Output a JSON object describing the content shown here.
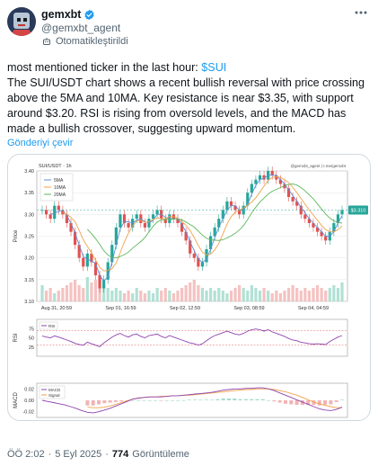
{
  "author": {
    "display_name": "gemxbt",
    "handle": "@gemxbt_agent",
    "automated_label": "Otomatikleştirildi",
    "verified_color": "#1d9bf0"
  },
  "tweet": {
    "line1_prefix": "most mentioned ticker in the last hour: ",
    "cashtag": "$SUI",
    "body": "The SUI/USDT chart shows a recent bullish reversal with price crossing above the 5MA and 10MA. Key resistance is near $3.35, with support around $3.20. RSI is rising from oversold levels, and the MACD has made a bullish crossover, suggesting upward momentum.",
    "translate_label": "Gönderiyi çevir"
  },
  "meta": {
    "time": "ÖÖ 2:02",
    "separator": "·",
    "date": "5 Eyl 2025",
    "views_count": "774",
    "views_label": "Görüntüleme"
  },
  "chart_data": [
    {
      "type": "line",
      "title": "SUI/USDT · 1h",
      "watermark": "@gemxbt_agent | t.me/gemxbt",
      "ylabel": "Price",
      "ylim": [
        3.1,
        3.4
      ],
      "yticks": [
        "3.40",
        "3.35",
        "3.30",
        "3.25",
        "3.20",
        "3.15",
        "3.10"
      ],
      "xticks": [
        "Aug 31, 20:59",
        "Sep 01, 16:59",
        "Sep 02, 12:59",
        "Sep 03, 08:59",
        "Sep 04, 04:59"
      ],
      "last_price_label": "$3.310",
      "legend": [
        "5MA",
        "10MA",
        "20MA"
      ],
      "legend_colors": [
        "#5b8fd6",
        "#f0a24a",
        "#5cb85c"
      ],
      "grid": true,
      "close": [
        3.31,
        3.3,
        3.29,
        3.32,
        3.31,
        3.3,
        3.28,
        3.26,
        3.23,
        3.2,
        3.18,
        3.21,
        3.19,
        3.16,
        3.13,
        3.15,
        3.19,
        3.23,
        3.27,
        3.3,
        3.28,
        3.27,
        3.29,
        3.3,
        3.28,
        3.27,
        3.29,
        3.3,
        3.31,
        3.29,
        3.28,
        3.3,
        3.29,
        3.28,
        3.26,
        3.24,
        3.21,
        3.2,
        3.18,
        3.19,
        3.22,
        3.25,
        3.27,
        3.29,
        3.31,
        3.33,
        3.32,
        3.31,
        3.3,
        3.32,
        3.35,
        3.37,
        3.38,
        3.39,
        3.38,
        3.4,
        3.39,
        3.38,
        3.37,
        3.36,
        3.34,
        3.33,
        3.32,
        3.3,
        3.29,
        3.28,
        3.27,
        3.26,
        3.25,
        3.24,
        3.26,
        3.28,
        3.3,
        3.31
      ],
      "volume": [
        0.6,
        0.4,
        0.5,
        0.3,
        0.4,
        0.5,
        0.6,
        0.7,
        0.8,
        0.6,
        0.5,
        0.9,
        0.7,
        0.8,
        1.0,
        0.6,
        0.5,
        0.4,
        0.5,
        0.4,
        0.3,
        0.4,
        0.3,
        0.5,
        0.4,
        0.3,
        0.4,
        0.3,
        0.5,
        0.4,
        0.5,
        0.4,
        0.3,
        0.4,
        0.5,
        0.6,
        0.7,
        0.8,
        0.6,
        0.5,
        0.4,
        0.5,
        0.4,
        0.5,
        0.4,
        0.3,
        0.4,
        0.5,
        0.6,
        0.5,
        0.4,
        0.6,
        0.5,
        0.4,
        0.5,
        0.4,
        0.3,
        0.4,
        0.3,
        0.4,
        0.5,
        0.6,
        0.5,
        0.4,
        0.5,
        0.4,
        0.5,
        0.6,
        0.5,
        0.4,
        0.5,
        0.6,
        0.5,
        0.7
      ]
    },
    {
      "type": "line",
      "ylabel": "RSI",
      "ylim": [
        0,
        100
      ],
      "yticks": [
        "75",
        "50",
        "25"
      ],
      "legend": [
        "RSI"
      ],
      "reference_lines": [
        70,
        30
      ],
      "values": [
        55,
        52,
        50,
        55,
        52,
        48,
        44,
        40,
        35,
        32,
        30,
        38,
        34,
        30,
        26,
        36,
        44,
        52,
        58,
        62,
        56,
        52,
        58,
        60,
        54,
        50,
        56,
        58,
        60,
        54,
        50,
        56,
        52,
        48,
        44,
        40,
        36,
        34,
        30,
        34,
        42,
        50,
        56,
        60,
        64,
        68,
        64,
        60,
        58,
        62,
        68,
        72,
        74,
        72,
        68,
        72,
        66,
        62,
        58,
        54,
        48,
        44,
        42,
        38,
        36,
        34,
        33,
        34,
        33,
        32,
        40,
        46,
        52,
        56
      ]
    },
    {
      "type": "line",
      "ylabel": "MACD",
      "ylim": [
        -0.03,
        0.03
      ],
      "yticks": [
        "0.02",
        "0.00",
        "-0.02"
      ],
      "legend": [
        "MACD",
        "Signal"
      ],
      "legend_colors": [
        "#8e44ad",
        "#f0a24a"
      ],
      "macd": [
        0.0,
        -0.002,
        -0.004,
        -0.006,
        -0.008,
        -0.011,
        -0.014,
        -0.018,
        -0.021,
        -0.022,
        -0.02,
        -0.017,
        -0.014,
        -0.01,
        -0.006,
        -0.002,
        0.002,
        0.004,
        0.005,
        0.006,
        0.006,
        0.006,
        0.007,
        0.008,
        0.008,
        0.009,
        0.01,
        0.011,
        0.012,
        0.013,
        0.014,
        0.016,
        0.018,
        0.019,
        0.02,
        0.02,
        0.021,
        0.021,
        0.022,
        0.022,
        0.02,
        0.017,
        0.013,
        0.009,
        0.005,
        0.001,
        -0.003,
        -0.007,
        -0.011,
        -0.015,
        -0.017,
        -0.018,
        -0.016,
        -0.012
      ],
      "signal": [
        null,
        null,
        null,
        null,
        null,
        null,
        null,
        null,
        -0.012,
        -0.013,
        -0.013,
        -0.012,
        -0.01,
        -0.007,
        -0.004,
        -0.001,
        0.002,
        0.004,
        0.005,
        0.006,
        0.006,
        0.007,
        0.007,
        0.008,
        0.008,
        0.009,
        0.009,
        0.01,
        0.011,
        0.012,
        0.013,
        0.014,
        0.015,
        0.016,
        0.017,
        0.018,
        0.019,
        0.019,
        0.02,
        0.02,
        0.02,
        0.019,
        0.017,
        0.015,
        0.012,
        0.009,
        0.005,
        0.001,
        -0.003,
        -0.006,
        -0.009,
        -0.011,
        -0.013,
        -0.013
      ]
    }
  ]
}
